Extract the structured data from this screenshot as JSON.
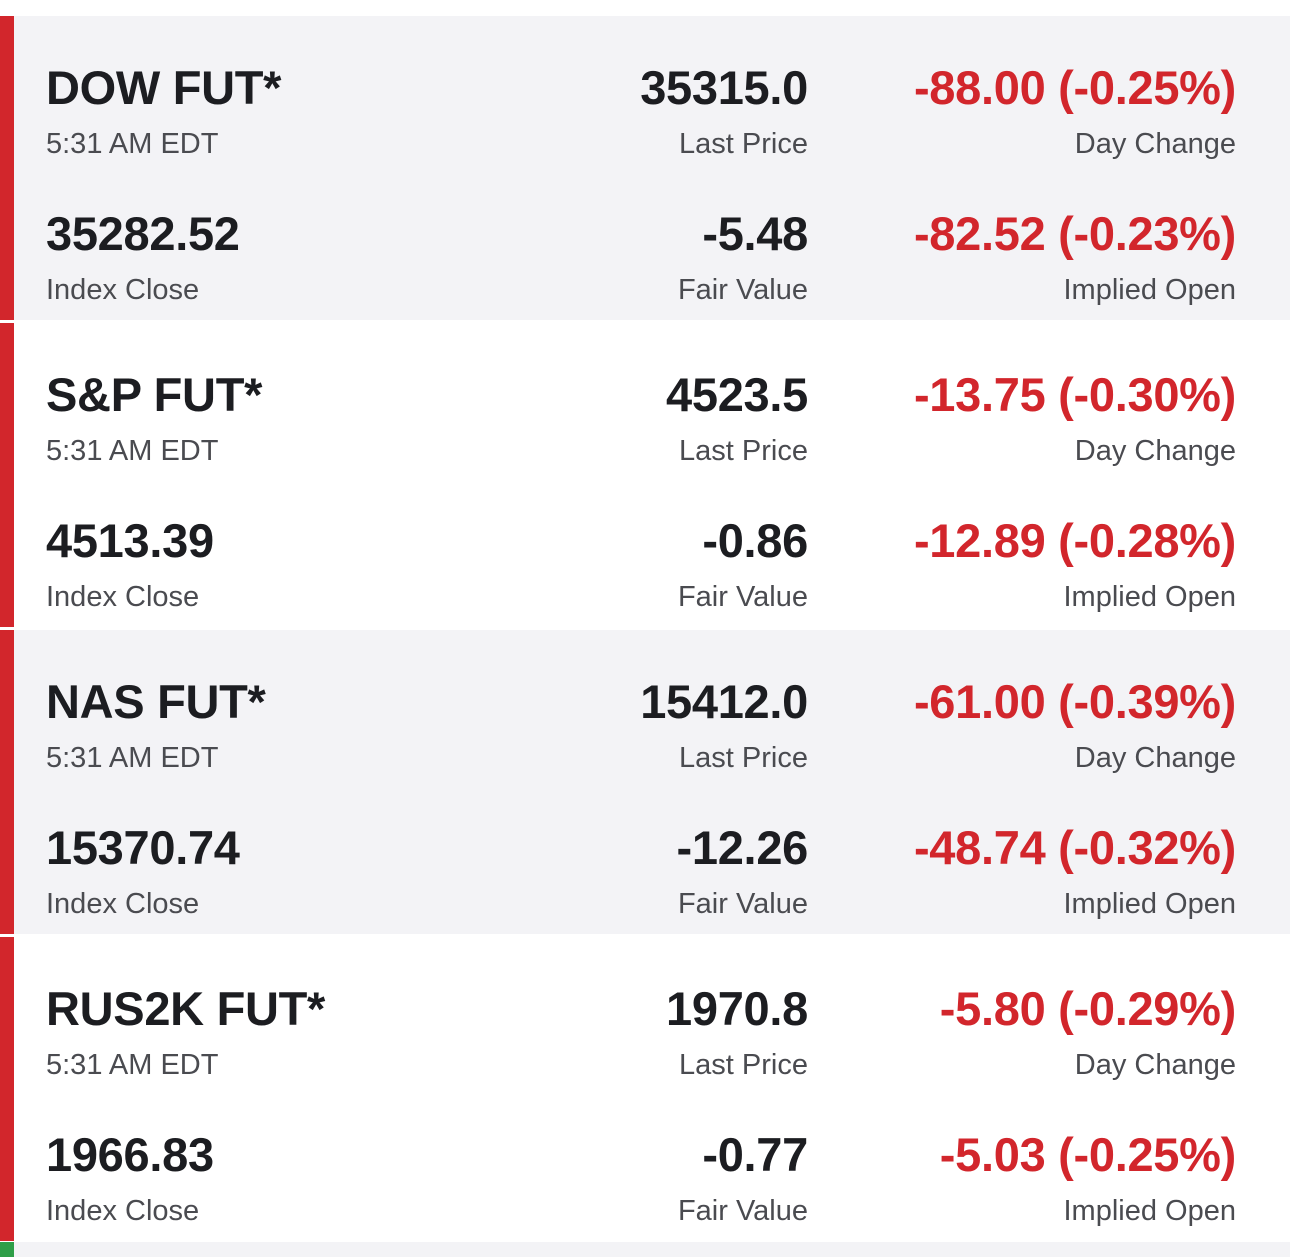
{
  "colors": {
    "negative": "#d2262c",
    "accent_bar": "#d2262c",
    "next_accent_bar": "#2e9e48"
  },
  "futures": [
    {
      "name": "DOW FUT*",
      "time": "5:31 AM EDT",
      "last_price": "35315.0",
      "last_price_label": "Last Price",
      "day_change": "-88.00 (-0.25%)",
      "day_change_label": "Day Change",
      "index_close": "35282.52",
      "index_close_label": "Index Close",
      "fair_value": "-5.48",
      "fair_value_label": "Fair Value",
      "implied_open": "-82.52 (-0.23%)",
      "implied_open_label": "Implied Open"
    },
    {
      "name": "S&P FUT*",
      "time": "5:31 AM EDT",
      "last_price": "4523.5",
      "last_price_label": "Last Price",
      "day_change": "-13.75 (-0.30%)",
      "day_change_label": "Day Change",
      "index_close": "4513.39",
      "index_close_label": "Index Close",
      "fair_value": "-0.86",
      "fair_value_label": "Fair Value",
      "implied_open": "-12.89 (-0.28%)",
      "implied_open_label": "Implied Open"
    },
    {
      "name": "NAS FUT*",
      "time": "5:31 AM EDT",
      "last_price": "15412.0",
      "last_price_label": "Last Price",
      "day_change": "-61.00 (-0.39%)",
      "day_change_label": "Day Change",
      "index_close": "15370.74",
      "index_close_label": "Index Close",
      "fair_value": "-12.26",
      "fair_value_label": "Fair Value",
      "implied_open": "-48.74 (-0.32%)",
      "implied_open_label": "Implied Open"
    },
    {
      "name": "RUS2K FUT*",
      "time": "5:31 AM EDT",
      "last_price": "1970.8",
      "last_price_label": "Last Price",
      "day_change": "-5.80 (-0.29%)",
      "day_change_label": "Day Change",
      "index_close": "1966.83",
      "index_close_label": "Index Close",
      "fair_value": "-0.77",
      "fair_value_label": "Fair Value",
      "implied_open": "-5.03 (-0.25%)",
      "implied_open_label": "Implied Open"
    }
  ]
}
